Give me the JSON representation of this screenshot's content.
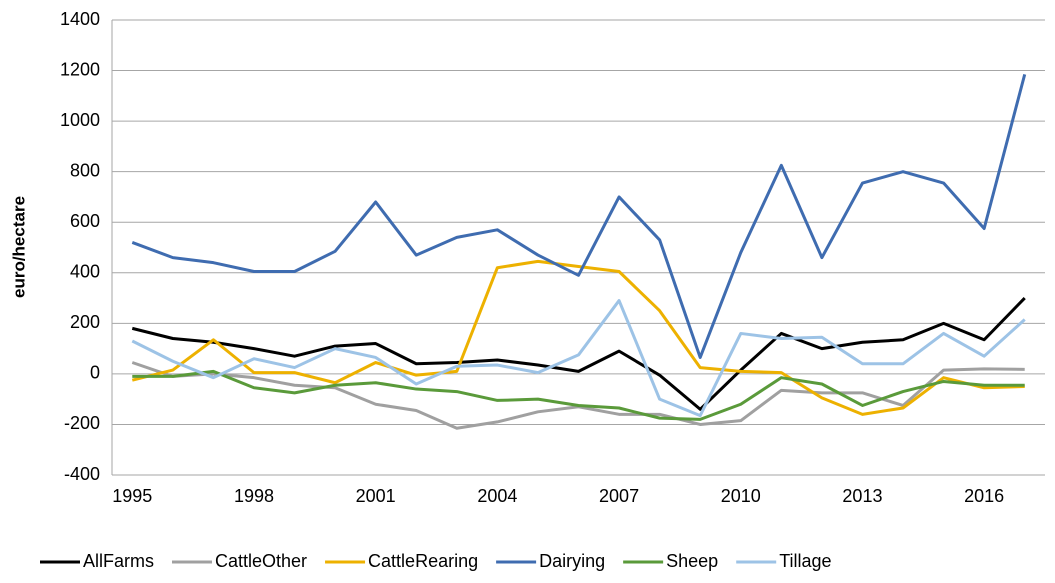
{
  "chart_data": {
    "type": "line",
    "y_label": "euro/hectare",
    "categories": [
      "1995",
      null,
      null,
      "1998",
      null,
      null,
      "2001",
      null,
      null,
      "2004",
      null,
      null,
      "2007",
      null,
      null,
      "2010",
      null,
      null,
      "2013",
      null,
      null,
      "2016",
      null
    ],
    "ylim": [
      -400,
      1400
    ],
    "yticks": [
      -400,
      -200,
      0,
      200,
      400,
      600,
      800,
      1000,
      1200,
      1400
    ],
    "grid": true,
    "legend": "bottom",
    "series": [
      {
        "name": "AllFarms",
        "color": "#000000",
        "values": [
          180,
          140,
          125,
          100,
          70,
          110,
          120,
          40,
          45,
          55,
          35,
          10,
          90,
          -5,
          -140,
          15,
          160,
          100,
          125,
          135,
          200,
          135,
          300
        ]
      },
      {
        "name": "CattleOther",
        "color": "#a0a0a0",
        "values": [
          45,
          -10,
          0,
          -15,
          -45,
          -55,
          -120,
          -145,
          -215,
          -190,
          -150,
          -130,
          -160,
          -160,
          -200,
          -185,
          -65,
          -75,
          -75,
          -125,
          15,
          20,
          18
        ]
      },
      {
        "name": "CattleRearing",
        "color": "#edb100",
        "values": [
          -25,
          15,
          135,
          5,
          5,
          -35,
          45,
          -5,
          10,
          420,
          445,
          425,
          405,
          250,
          25,
          10,
          5,
          -95,
          -160,
          -135,
          -15,
          -55,
          -50
        ]
      },
      {
        "name": "Dairying",
        "color": "#3f6cb0",
        "values": [
          520,
          460,
          440,
          405,
          405,
          485,
          680,
          470,
          540,
          570,
          470,
          390,
          700,
          530,
          65,
          480,
          825,
          460,
          755,
          800,
          755,
          575,
          1185
        ]
      },
      {
        "name": "Sheep",
        "color": "#5a9a3a",
        "values": [
          -10,
          -10,
          10,
          -55,
          -75,
          -45,
          -35,
          -60,
          -70,
          -105,
          -100,
          -125,
          -135,
          -175,
          -180,
          -120,
          -15,
          -40,
          -125,
          -70,
          -30,
          -45,
          -45
        ]
      },
      {
        "name": "Tillage",
        "color": "#9dc3e6",
        "values": [
          130,
          50,
          -15,
          60,
          25,
          100,
          65,
          -40,
          30,
          35,
          5,
          75,
          290,
          -100,
          -165,
          160,
          140,
          145,
          40,
          40,
          160,
          70,
          215
        ]
      }
    ]
  }
}
